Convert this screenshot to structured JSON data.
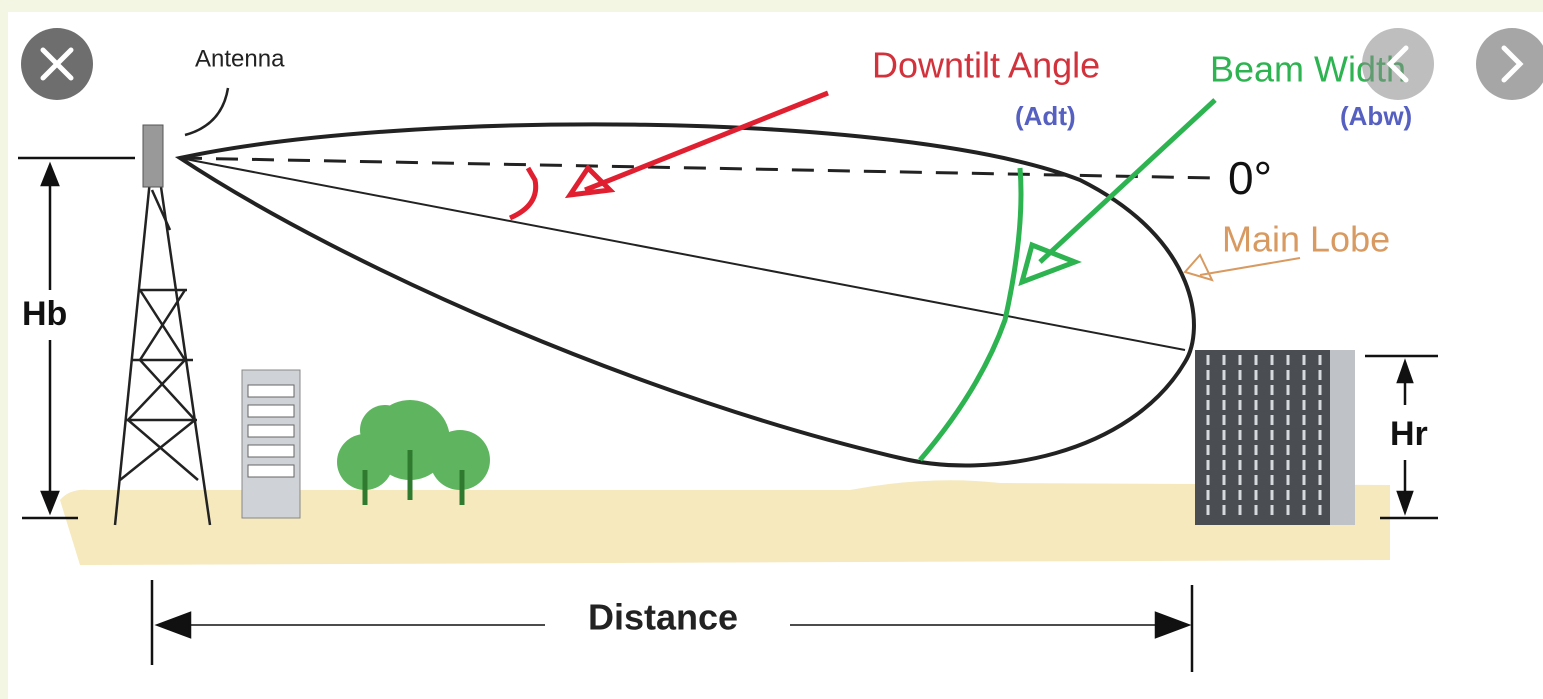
{
  "diagram": {
    "antenna": "Antenna",
    "downtilt_angle": "Downtilt Angle",
    "adt": "(Adt)",
    "beam_width": "Beam Width",
    "abw": "(Abw)",
    "zero_degree": "0°",
    "main_lobe": "Main Lobe",
    "hb": "Hb",
    "hr": "Hr",
    "distance": "Distance"
  }
}
